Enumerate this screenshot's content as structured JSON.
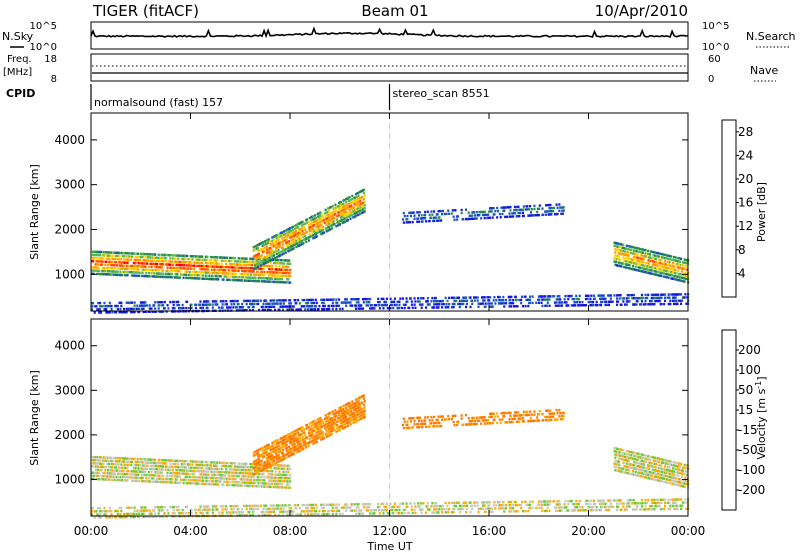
{
  "header": {
    "radar": "TIGER (fitACF)",
    "beam": "Beam 01",
    "date": "10/Apr/2010"
  },
  "summary_panels": {
    "nsky_label": "N.Sky",
    "nsky_ticks": [
      "10^5",
      "10^0"
    ],
    "nsearch_label": "N.Search",
    "nsearch_ticks": [
      "10^5",
      "10^0"
    ],
    "freq_label": "Freq.",
    "freq_unit": "[MHz]",
    "freq_ticks": [
      18,
      8
    ],
    "nave_label": "Nave",
    "nave_ticks": [
      60,
      0
    ],
    "cpid_label": "CPID",
    "cpid_segments": [
      {
        "name": "normalsound (fast) 157",
        "start_hour": 0
      },
      {
        "name": "stereo_scan 8551",
        "start_hour": 12
      }
    ]
  },
  "colors": {
    "power_scale": [
      "#1616e0",
      "#1a52c0",
      "#2a8a4a",
      "#58b858",
      "#ffd000",
      "#ff9a00",
      "#ff4a00",
      "#e60000"
    ],
    "velocity_scale": [
      "#e00000",
      "#ff3300",
      "#ff7700",
      "#ffaa00",
      "#c8c8b8",
      "#c8c8b8",
      "#66cc33",
      "#33aa33",
      "#3366cc",
      "#2020b0"
    ],
    "cpid_change_line": "#cfcfcf"
  },
  "chart_data": [
    {
      "type": "heatmap",
      "title": "",
      "xlabel": "Time UT",
      "ylabel": "Slant Range [km]",
      "xlim": [
        0,
        24
      ],
      "ylim": [
        180,
        4600
      ],
      "x_ticks": [
        "00:00",
        "04:00",
        "08:00",
        "12:00",
        "16:00",
        "20:00",
        "00:00"
      ],
      "y_ticks": [
        1000,
        2000,
        3000,
        4000
      ],
      "colorbar": {
        "label": "Power [dB]",
        "ticks": [
          4,
          8,
          12,
          16,
          20,
          24,
          28
        ],
        "range": [
          0,
          30
        ]
      },
      "echo_regions": [
        {
          "name": "strong ionospheric scatter band",
          "hours": [
            0,
            8
          ],
          "range_km": [
            1300,
            1100
          ],
          "power_db": 26
        },
        {
          "name": "rising scatter arc",
          "hours": [
            6.5,
            11
          ],
          "range_km": [
            1400,
            2700
          ],
          "power_db": 24
        },
        {
          "name": "high-range patchy scatter",
          "hours": [
            12.5,
            19
          ],
          "range_km": [
            2300,
            2500
          ],
          "power_db": 8
        },
        {
          "name": "late evening scatter",
          "hours": [
            21,
            24
          ],
          "range_km": [
            1500,
            1100
          ],
          "power_db": 22
        },
        {
          "name": "near-range ground/meteor echoes",
          "hours": [
            0,
            24
          ],
          "range_km": [
            300,
            500
          ],
          "power_db": 6
        }
      ]
    },
    {
      "type": "heatmap",
      "title": "",
      "xlabel": "Time UT",
      "ylabel": "Slant Range [km]",
      "xlim": [
        0,
        24
      ],
      "ylim": [
        180,
        4600
      ],
      "x_ticks": [
        "00:00",
        "04:00",
        "08:00",
        "12:00",
        "16:00",
        "20:00",
        "00:00"
      ],
      "y_ticks": [
        1000,
        2000,
        3000,
        4000
      ],
      "colorbar": {
        "label": "Velocity [m s^-1]",
        "ticks": [
          200,
          100,
          50,
          15,
          -15,
          -50,
          -100,
          -200
        ]
      },
      "echo_regions": [
        {
          "name": "low-velocity scatter band",
          "hours": [
            0,
            8
          ],
          "range_km": [
            1300,
            1100
          ],
          "velocity_ms": 0
        },
        {
          "name": "rising arc mixed velocity",
          "hours": [
            6.5,
            11
          ],
          "range_km": [
            1400,
            2700
          ],
          "velocity_ms": -60
        },
        {
          "name": "near-range negative velocity",
          "hours": [
            12,
            22
          ],
          "range_km": [
            300,
            550
          ],
          "velocity_ms": -70
        },
        {
          "name": "high-range patchy scatter",
          "hours": [
            12.5,
            19
          ],
          "range_km": [
            2300,
            2500
          ],
          "velocity_ms": 0
        },
        {
          "name": "late evening scatter",
          "hours": [
            21,
            24
          ],
          "range_km": [
            1500,
            1100
          ],
          "velocity_ms": 0
        }
      ]
    }
  ]
}
